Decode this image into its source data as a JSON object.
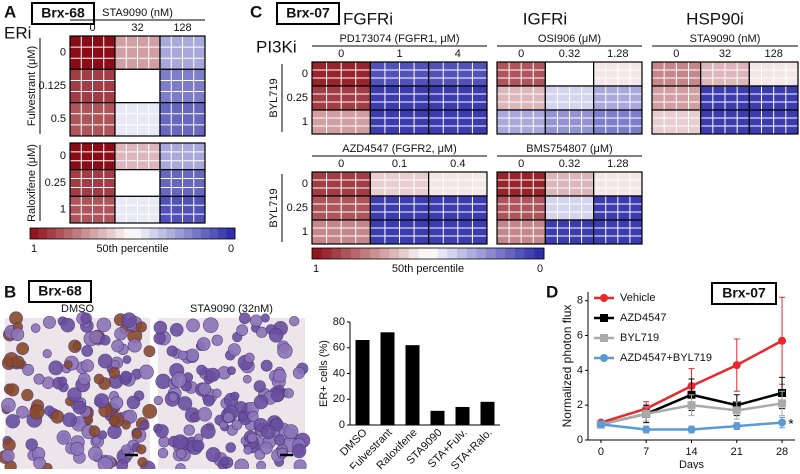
{
  "panels": {
    "A": {
      "label": "A",
      "tag": "Brx-68",
      "group_label": "ERi",
      "colorbar": {
        "ticks": [
          1,
          0
        ],
        "label": "50th percentile"
      }
    },
    "B": {
      "label": "B",
      "tag": "Brx-68",
      "images": [
        "DMSO",
        "STA9090 (32nM)"
      ]
    },
    "C": {
      "label": "C",
      "tag": "Brx-07",
      "drug_classes": [
        "FGFRi",
        "IGFRi",
        "HSP90i"
      ],
      "row_class": "PI3Ki",
      "colorbar": {
        "ticks": [
          1,
          0
        ],
        "label": "50th percentile"
      }
    },
    "D": {
      "label": "D",
      "tag": "Brx-07"
    }
  },
  "chart_data": [
    {
      "type": "heatmap",
      "title": "STA9090 (nM)",
      "x": [
        0,
        32,
        128
      ],
      "y": [
        0,
        0.125,
        0.5
      ],
      "ylabel": "Fulvestrant (μM)",
      "values": [
        [
          1,
          0.7,
          0.3
        ],
        [
          0.9,
          0.5,
          0.2
        ],
        [
          0.85,
          0.45,
          0.15
        ]
      ]
    },
    {
      "type": "heatmap",
      "y": [
        0,
        0.25,
        1
      ],
      "ylabel": "Raloxifene (μM)",
      "values": [
        [
          1,
          0.65,
          0.3
        ],
        [
          0.9,
          0.5,
          0.15
        ],
        [
          0.85,
          0.45,
          0.1
        ]
      ]
    },
    {
      "type": "heatmap",
      "title": "PD173074 (FGFR1, μM)",
      "x": [
        0,
        1,
        4
      ],
      "y": [
        0,
        0.25,
        1
      ],
      "ylabel": "BYL719",
      "values": [
        [
          0.95,
          0.1,
          0.1
        ],
        [
          0.9,
          0.05,
          0.05
        ],
        [
          0.7,
          0.05,
          0.05
        ]
      ]
    },
    {
      "type": "heatmap",
      "title": "OSI906 (μM)",
      "x": [
        0,
        0.32,
        1.28
      ],
      "values": [
        [
          0.85,
          0.5,
          0.55
        ],
        [
          0.65,
          0.4,
          0.3
        ],
        [
          0.3,
          0.25,
          0.2
        ]
      ]
    },
    {
      "type": "heatmap",
      "title": "STA9090 (nM)",
      "x": [
        0,
        32,
        128
      ],
      "values": [
        [
          0.75,
          0.65,
          0.55
        ],
        [
          0.7,
          0.05,
          0.05
        ],
        [
          0.6,
          0.05,
          0.05
        ]
      ]
    },
    {
      "type": "heatmap",
      "title": "AZD4547 (FGFR2, μM)",
      "x": [
        0,
        0.1,
        0.4
      ],
      "y": [
        0,
        0.25,
        1
      ],
      "ylabel": "BYL719",
      "values": [
        [
          0.9,
          0.6,
          0.55
        ],
        [
          0.85,
          0.05,
          0.05
        ],
        [
          0.75,
          0.05,
          0.05
        ]
      ]
    },
    {
      "type": "heatmap",
      "title": "BMS754807 (μM)",
      "x": [
        0,
        0.32,
        1.28
      ],
      "values": [
        [
          0.95,
          0.65,
          0.55
        ],
        [
          0.85,
          0.4,
          0.05
        ],
        [
          0.75,
          0.05,
          0.05
        ]
      ]
    },
    {
      "type": "bar",
      "ylabel": "ER+ cells (%)",
      "categories": [
        "DMSO",
        "Fulvestrant",
        "Raloxifene",
        "STA9090",
        "STA+Fulv.",
        "STA+Ralo."
      ],
      "values": [
        66,
        72,
        62,
        11,
        14,
        18
      ],
      "color": "#000000",
      "ylim": [
        0,
        80
      ],
      "yticks": [
        0,
        20,
        40,
        60,
        80
      ]
    },
    {
      "type": "line",
      "xlabel": "Days",
      "ylabel": "Normalized photon flux",
      "x": [
        0,
        7,
        14,
        21,
        28
      ],
      "xlim": [
        -2,
        30
      ],
      "xticks": [
        0,
        7,
        14,
        21,
        28
      ],
      "ylim": [
        0,
        8.5
      ],
      "yticks": [
        0,
        2,
        4,
        6,
        8
      ],
      "annotation": "*",
      "series": [
        {
          "name": "Vehicle",
          "color": "#e8282b",
          "marker": "circle",
          "values": [
            1,
            1.8,
            3.1,
            4.3,
            5.7
          ],
          "errors": [
            0.1,
            0.4,
            1.0,
            1.5,
            2.5
          ]
        },
        {
          "name": "AZD4547",
          "color": "#000000",
          "marker": "square",
          "values": [
            0.9,
            1.5,
            2.6,
            2.0,
            2.7
          ],
          "errors": [
            0.1,
            0.5,
            0.9,
            0.6,
            0.9
          ]
        },
        {
          "name": "BYL719",
          "color": "#aaaaaa",
          "marker": "square",
          "values": [
            0.9,
            1.5,
            2.0,
            1.7,
            2.1
          ],
          "errors": [
            0.1,
            0.4,
            0.6,
            0.5,
            0.7
          ]
        },
        {
          "name": "AZD4547+BYL719",
          "color": "#5b9bd5",
          "marker": "circle",
          "values": [
            0.9,
            0.6,
            0.6,
            0.8,
            1.0
          ],
          "errors": [
            0.1,
            0.2,
            0.2,
            0.2,
            0.3
          ]
        }
      ]
    }
  ]
}
